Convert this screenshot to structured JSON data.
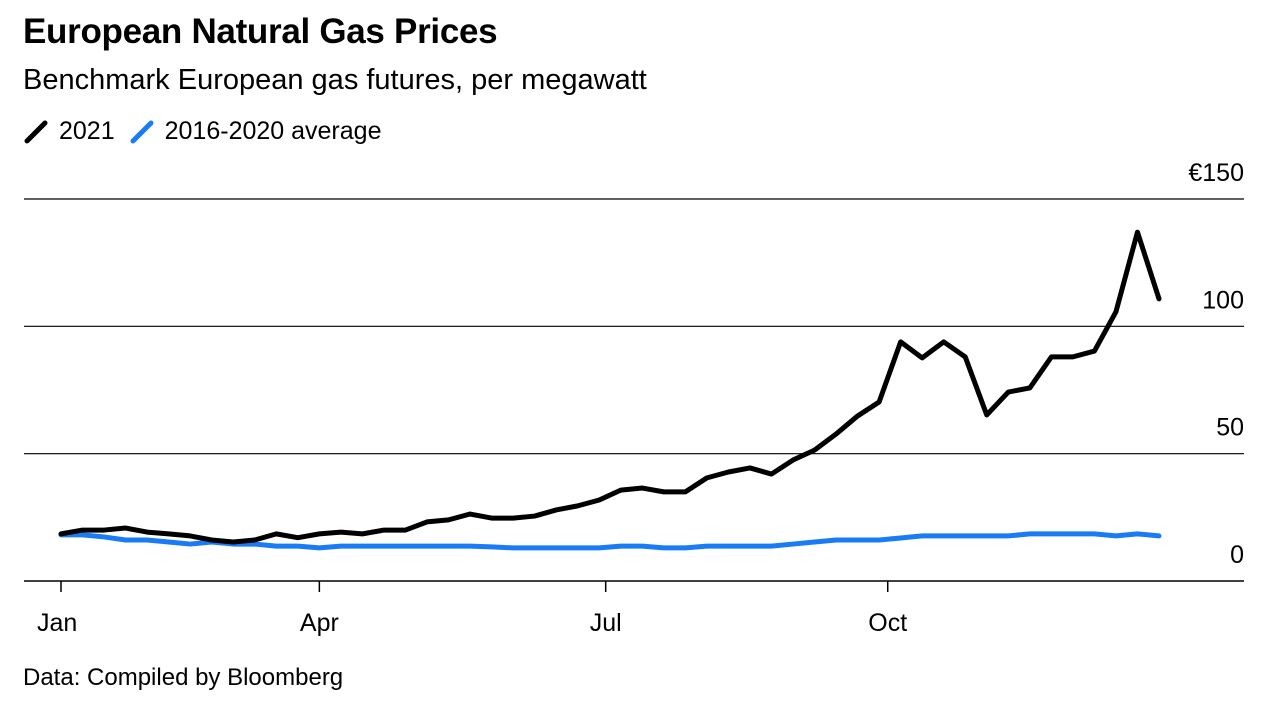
{
  "title": "European Natural Gas Prices",
  "subtitle": "Benchmark European gas futures, per megawatt",
  "source": "Data: Compiled by Bloomberg",
  "colors": {
    "series_2021": "#000000",
    "series_avg": "#1a7cf5"
  },
  "chart_data": {
    "type": "line",
    "title": "European Natural Gas Prices",
    "xlabel": "",
    "ylabel": "",
    "ylim": [
      0,
      150
    ],
    "xlim": [
      0,
      51
    ],
    "grid": true,
    "legend_placement": "top-left",
    "y_ticks": [
      {
        "value": 0,
        "label": "0"
      },
      {
        "value": 50,
        "label": "50"
      },
      {
        "value": 100,
        "label": "100"
      },
      {
        "value": 150,
        "label": "€150"
      }
    ],
    "x_ticks": [
      {
        "value": 0,
        "label": "Jan"
      },
      {
        "value": 12,
        "label": "Apr"
      },
      {
        "value": 25.3,
        "label": "Jul"
      },
      {
        "value": 38.4,
        "label": "Oct"
      }
    ],
    "series": [
      {
        "name": "2021",
        "color": "#000000",
        "values": [
          18.5,
          20,
          20,
          20.8,
          19.2,
          18.5,
          17.7,
          16.1,
          15.3,
          16.1,
          18.5,
          17,
          18.5,
          19.2,
          18.5,
          20,
          20,
          23.2,
          24,
          26.3,
          24.7,
          24.7,
          25.5,
          27.9,
          29.5,
          31.8,
          35.7,
          36.5,
          35,
          35,
          40.5,
          42.8,
          44.4,
          42,
          47.5,
          51.4,
          57.7,
          64.8,
          70.3,
          93.9,
          87.6,
          93.9,
          88,
          65.2,
          74.2,
          75.8,
          88,
          88,
          90.3,
          105.7,
          137,
          110.8
        ]
      },
      {
        "name": "2016-2020 average",
        "color": "#1a7cf5",
        "values": [
          18.1,
          18.1,
          17.3,
          16.1,
          16.1,
          15.3,
          14.5,
          15.3,
          14.5,
          14.5,
          13.7,
          13.7,
          13,
          13.7,
          13.7,
          13.7,
          13.7,
          13.7,
          13.7,
          13.7,
          13.4,
          13,
          13,
          13,
          13,
          13,
          13.7,
          13.7,
          13,
          13,
          13.7,
          13.7,
          13.7,
          13.7,
          14.5,
          15.3,
          16.1,
          16.1,
          16.1,
          16.9,
          17.7,
          17.7,
          17.7,
          17.7,
          17.7,
          18.5,
          18.5,
          18.5,
          18.5,
          17.7,
          18.5,
          17.7
        ]
      }
    ]
  }
}
